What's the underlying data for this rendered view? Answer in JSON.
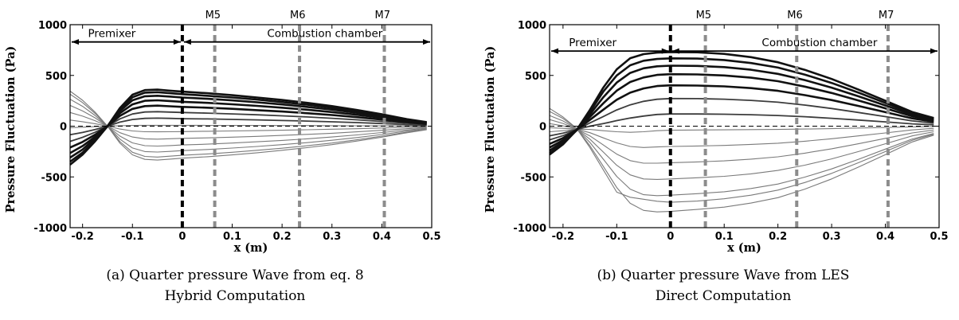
{
  "chart_data": [
    {
      "type": "line",
      "panel": "a",
      "ylabel": "Pressure Fluctuation (Pa)",
      "xlabel": "x (m)",
      "xlim": [
        -0.225,
        0.5
      ],
      "ylim": [
        -1000,
        1000
      ],
      "xticks": [
        -0.2,
        -0.1,
        0,
        0.1,
        0.2,
        0.3,
        0.4,
        0.5
      ],
      "xtick_labels": [
        "-0.2",
        "-0.1",
        "0",
        "0.1",
        "0.2",
        "0.3",
        "0.4",
        "0.5"
      ],
      "yticks": [
        1000,
        500,
        0,
        -500,
        -1000
      ],
      "ytick_labels": [
        "1000",
        "500",
        "0",
        "-500",
        "-1000"
      ],
      "regions": [
        {
          "label": "Premixer",
          "x_from": -0.225,
          "x_to": 0
        },
        {
          "label": "Combustion chamber",
          "x_from": 0,
          "x_to": 0.5
        }
      ],
      "markers": [
        {
          "label": "M5",
          "x": 0.065
        },
        {
          "label": "M6",
          "x": 0.235
        },
        {
          "label": "M7",
          "x": 0.405
        }
      ],
      "interface_x": 0,
      "zero_line": true,
      "grid": false,
      "legend": "none",
      "curve_x": [
        -0.225,
        -0.2,
        -0.175,
        -0.15,
        -0.125,
        -0.1,
        -0.075,
        -0.05,
        -0.025,
        0,
        0.05,
        0.1,
        0.15,
        0.2,
        0.25,
        0.3,
        0.35,
        0.4,
        0.45,
        0.49
      ],
      "curves": [
        {
          "tone": "dark",
          "values": [
            -380,
            -280,
            -150,
            0,
            180,
            310,
            355,
            360,
            350,
            340,
            325,
            305,
            282,
            258,
            230,
            198,
            160,
            118,
            70,
            40
          ]
        },
        {
          "tone": "dark",
          "values": [
            -350,
            -260,
            -140,
            0,
            165,
            285,
            330,
            335,
            325,
            315,
            300,
            282,
            262,
            238,
            212,
            182,
            147,
            108,
            64,
            35
          ]
        },
        {
          "tone": "dark",
          "values": [
            -310,
            -230,
            -120,
            0,
            150,
            255,
            295,
            300,
            292,
            282,
            270,
            254,
            235,
            214,
            190,
            163,
            132,
            97,
            58,
            32
          ]
        },
        {
          "tone": "dark",
          "values": [
            -265,
            -195,
            -105,
            0,
            128,
            215,
            250,
            255,
            248,
            240,
            230,
            216,
            200,
            182,
            162,
            139,
            112,
            82,
            49,
            27
          ]
        },
        {
          "tone": "dark",
          "values": [
            -210,
            -155,
            -85,
            0,
            102,
            170,
            198,
            202,
            196,
            190,
            182,
            171,
            158,
            144,
            128,
            110,
            89,
            65,
            39,
            21
          ]
        },
        {
          "tone": "mid",
          "values": [
            -150,
            -110,
            -60,
            0,
            72,
            120,
            140,
            143,
            139,
            135,
            129,
            121,
            112,
            102,
            91,
            78,
            63,
            46,
            28,
            15
          ]
        },
        {
          "tone": "mid",
          "values": [
            -85,
            -62,
            -34,
            0,
            40,
            66,
            77,
            79,
            77,
            74,
            71,
            67,
            62,
            56,
            50,
            43,
            35,
            26,
            15,
            8
          ]
        },
        {
          "tone": "light",
          "values": [
            -15,
            -10,
            -5,
            0,
            5,
            8,
            9,
            9,
            9,
            9,
            8,
            8,
            7,
            6,
            6,
            5,
            4,
            3,
            2,
            1
          ]
        },
        {
          "tone": "light",
          "values": [
            60,
            44,
            24,
            0,
            -28,
            -47,
            -55,
            -56,
            -55,
            -53,
            -50,
            -47,
            -44,
            -40,
            -35,
            -30,
            -25,
            -18,
            -11,
            -6
          ]
        },
        {
          "tone": "light",
          "values": [
            135,
            99,
            54,
            0,
            -64,
            -107,
            -125,
            -128,
            -124,
            -120,
            -115,
            -108,
            -100,
            -91,
            -81,
            -70,
            -56,
            -41,
            -25,
            -13
          ]
        },
        {
          "tone": "light",
          "values": [
            205,
            150,
            82,
            0,
            -98,
            -165,
            -192,
            -196,
            -191,
            -185,
            -177,
            -166,
            -154,
            -140,
            -125,
            -107,
            -86,
            -63,
            -38,
            -20
          ]
        },
        {
          "tone": "light",
          "values": [
            265,
            195,
            106,
            0,
            -128,
            -215,
            -250,
            -255,
            -249,
            -241,
            -230,
            -216,
            -200,
            -182,
            -162,
            -139,
            -112,
            -82,
            -49,
            -26
          ]
        },
        {
          "tone": "light",
          "values": [
            315,
            232,
            126,
            0,
            -153,
            -257,
            -298,
            -304,
            -296,
            -287,
            -274,
            -257,
            -238,
            -217,
            -193,
            -166,
            -134,
            -98,
            -59,
            -31
          ]
        },
        {
          "tone": "light",
          "values": [
            345,
            255,
            139,
            0,
            -168,
            -282,
            -327,
            -334,
            -325,
            -315,
            -301,
            -283,
            -262,
            -238,
            -212,
            -182,
            -147,
            -108,
            -65,
            -35
          ]
        }
      ]
    },
    {
      "type": "line",
      "panel": "b",
      "ylabel": "Pressure Fluctuation (Pa)",
      "xlabel": "x (m)",
      "xlim": [
        -0.225,
        0.5
      ],
      "ylim": [
        -1000,
        1000
      ],
      "xticks": [
        -0.2,
        -0.1,
        0,
        0.1,
        0.2,
        0.3,
        0.4,
        0.5
      ],
      "xtick_labels": [
        "-0.2",
        "-0.1",
        "0",
        "0.1",
        "0.2",
        "0.3",
        "0.4",
        "0.5"
      ],
      "yticks": [
        1000,
        500,
        0,
        -500,
        -1000
      ],
      "ytick_labels": [
        "1000",
        "500",
        "0",
        "-500",
        "-1000"
      ],
      "regions": [
        {
          "label": "Premixer",
          "x_from": -0.225,
          "x_to": 0
        },
        {
          "label": "Combustion chamber",
          "x_from": 0,
          "x_to": 0.5
        }
      ],
      "markers": [
        {
          "label": "M5",
          "x": 0.065
        },
        {
          "label": "M6",
          "x": 0.235
        },
        {
          "label": "M7",
          "x": 0.405
        }
      ],
      "interface_x": 0,
      "zero_line": true,
      "grid": false,
      "legend": "none",
      "curve_x": [
        -0.225,
        -0.2,
        -0.175,
        -0.15,
        -0.125,
        -0.1,
        -0.075,
        -0.05,
        -0.025,
        0,
        0.05,
        0.1,
        0.15,
        0.2,
        0.25,
        0.3,
        0.35,
        0.4,
        0.45,
        0.49
      ],
      "curves": [
        {
          "tone": "dark",
          "values": [
            -280,
            -180,
            -40,
            160,
            380,
            560,
            670,
            710,
            725,
            730,
            728,
            712,
            680,
            630,
            555,
            465,
            360,
            250,
            140,
            80
          ]
        },
        {
          "tone": "dark",
          "values": [
            -265,
            -170,
            -42,
            140,
            340,
            500,
            600,
            645,
            662,
            668,
            666,
            652,
            622,
            577,
            508,
            426,
            330,
            229,
            128,
            73
          ]
        },
        {
          "tone": "dark",
          "values": [
            -240,
            -155,
            -42,
            115,
            285,
            430,
            525,
            570,
            590,
            596,
            594,
            582,
            556,
            515,
            454,
            380,
            294,
            204,
            114,
            65
          ]
        },
        {
          "tone": "dark",
          "values": [
            -210,
            -138,
            -40,
            90,
            225,
            350,
            435,
            480,
            505,
            512,
            510,
            500,
            478,
            443,
            390,
            327,
            253,
            176,
            98,
            56
          ]
        },
        {
          "tone": "dark",
          "values": [
            -175,
            -117,
            -38,
            62,
            162,
            260,
            330,
            372,
            395,
            402,
            400,
            392,
            375,
            348,
            306,
            257,
            199,
            138,
            77,
            44
          ]
        },
        {
          "tone": "mid",
          "values": [
            -135,
            -93,
            -36,
            32,
            95,
            160,
            210,
            245,
            265,
            272,
            271,
            266,
            254,
            236,
            208,
            174,
            135,
            94,
            52,
            30
          ]
        },
        {
          "tone": "mid",
          "values": [
            -95,
            -69,
            -34,
            0,
            25,
            55,
            80,
            100,
            115,
            120,
            120,
            118,
            113,
            105,
            93,
            78,
            60,
            42,
            23,
            13
          ]
        },
        {
          "tone": "light",
          "values": [
            -55,
            -45,
            -32,
            -32,
            -45,
            -55,
            -60,
            -55,
            -45,
            -40,
            -38,
            -36,
            -34,
            -32,
            -28,
            -24,
            -18,
            -13,
            -7,
            -4
          ]
        },
        {
          "tone": "light",
          "values": [
            -15,
            -21,
            -30,
            -64,
            -115,
            -165,
            -200,
            -210,
            -205,
            -200,
            -195,
            -190,
            -180,
            -168,
            -148,
            -124,
            -96,
            -67,
            -37,
            -21
          ]
        },
        {
          "tone": "light",
          "values": [
            25,
            3,
            -28,
            -96,
            -185,
            -275,
            -340,
            -365,
            -365,
            -360,
            -352,
            -342,
            -325,
            -302,
            -266,
            -223,
            -173,
            -120,
            -67,
            -38
          ]
        },
        {
          "tone": "light",
          "values": [
            65,
            27,
            -26,
            -128,
            -255,
            -385,
            -480,
            -520,
            -525,
            -520,
            -508,
            -494,
            -470,
            -436,
            -384,
            -322,
            -250,
            -173,
            -96,
            -55
          ]
        },
        {
          "tone": "light",
          "values": [
            105,
            51,
            -24,
            -160,
            -325,
            -495,
            -620,
            -675,
            -685,
            -680,
            -665,
            -646,
            -614,
            -570,
            -502,
            -421,
            -326,
            -226,
            -126,
            -72
          ]
        },
        {
          "tone": "light",
          "values": [
            145,
            75,
            -22,
            -192,
            -395,
            -605,
            -760,
            -830,
            -845,
            -840,
            -820,
            -798,
            -758,
            -704,
            -620,
            -520,
            -403,
            -280,
            -155,
            -89
          ]
        },
        {
          "tone": "light",
          "values": [
            175,
            90,
            -20,
            -210,
            -430,
            -650,
            -700,
            -720,
            -740,
            -750,
            -738,
            -715,
            -680,
            -630,
            -555,
            -465,
            -360,
            -250,
            -139,
            -80
          ]
        }
      ]
    }
  ],
  "captions": {
    "a": {
      "line1": "(a) Quarter pressure Wave from eq. 8",
      "line2": "Hybrid Computation"
    },
    "b": {
      "line1": "(b) Quarter pressure Wave from LES",
      "line2": "Direct Computation"
    }
  },
  "colors": {
    "dark": "#111111",
    "mid": "#3c3c3c",
    "light": "#7a7a7a",
    "marker": "#8c8c8c",
    "interface": "#000000"
  }
}
